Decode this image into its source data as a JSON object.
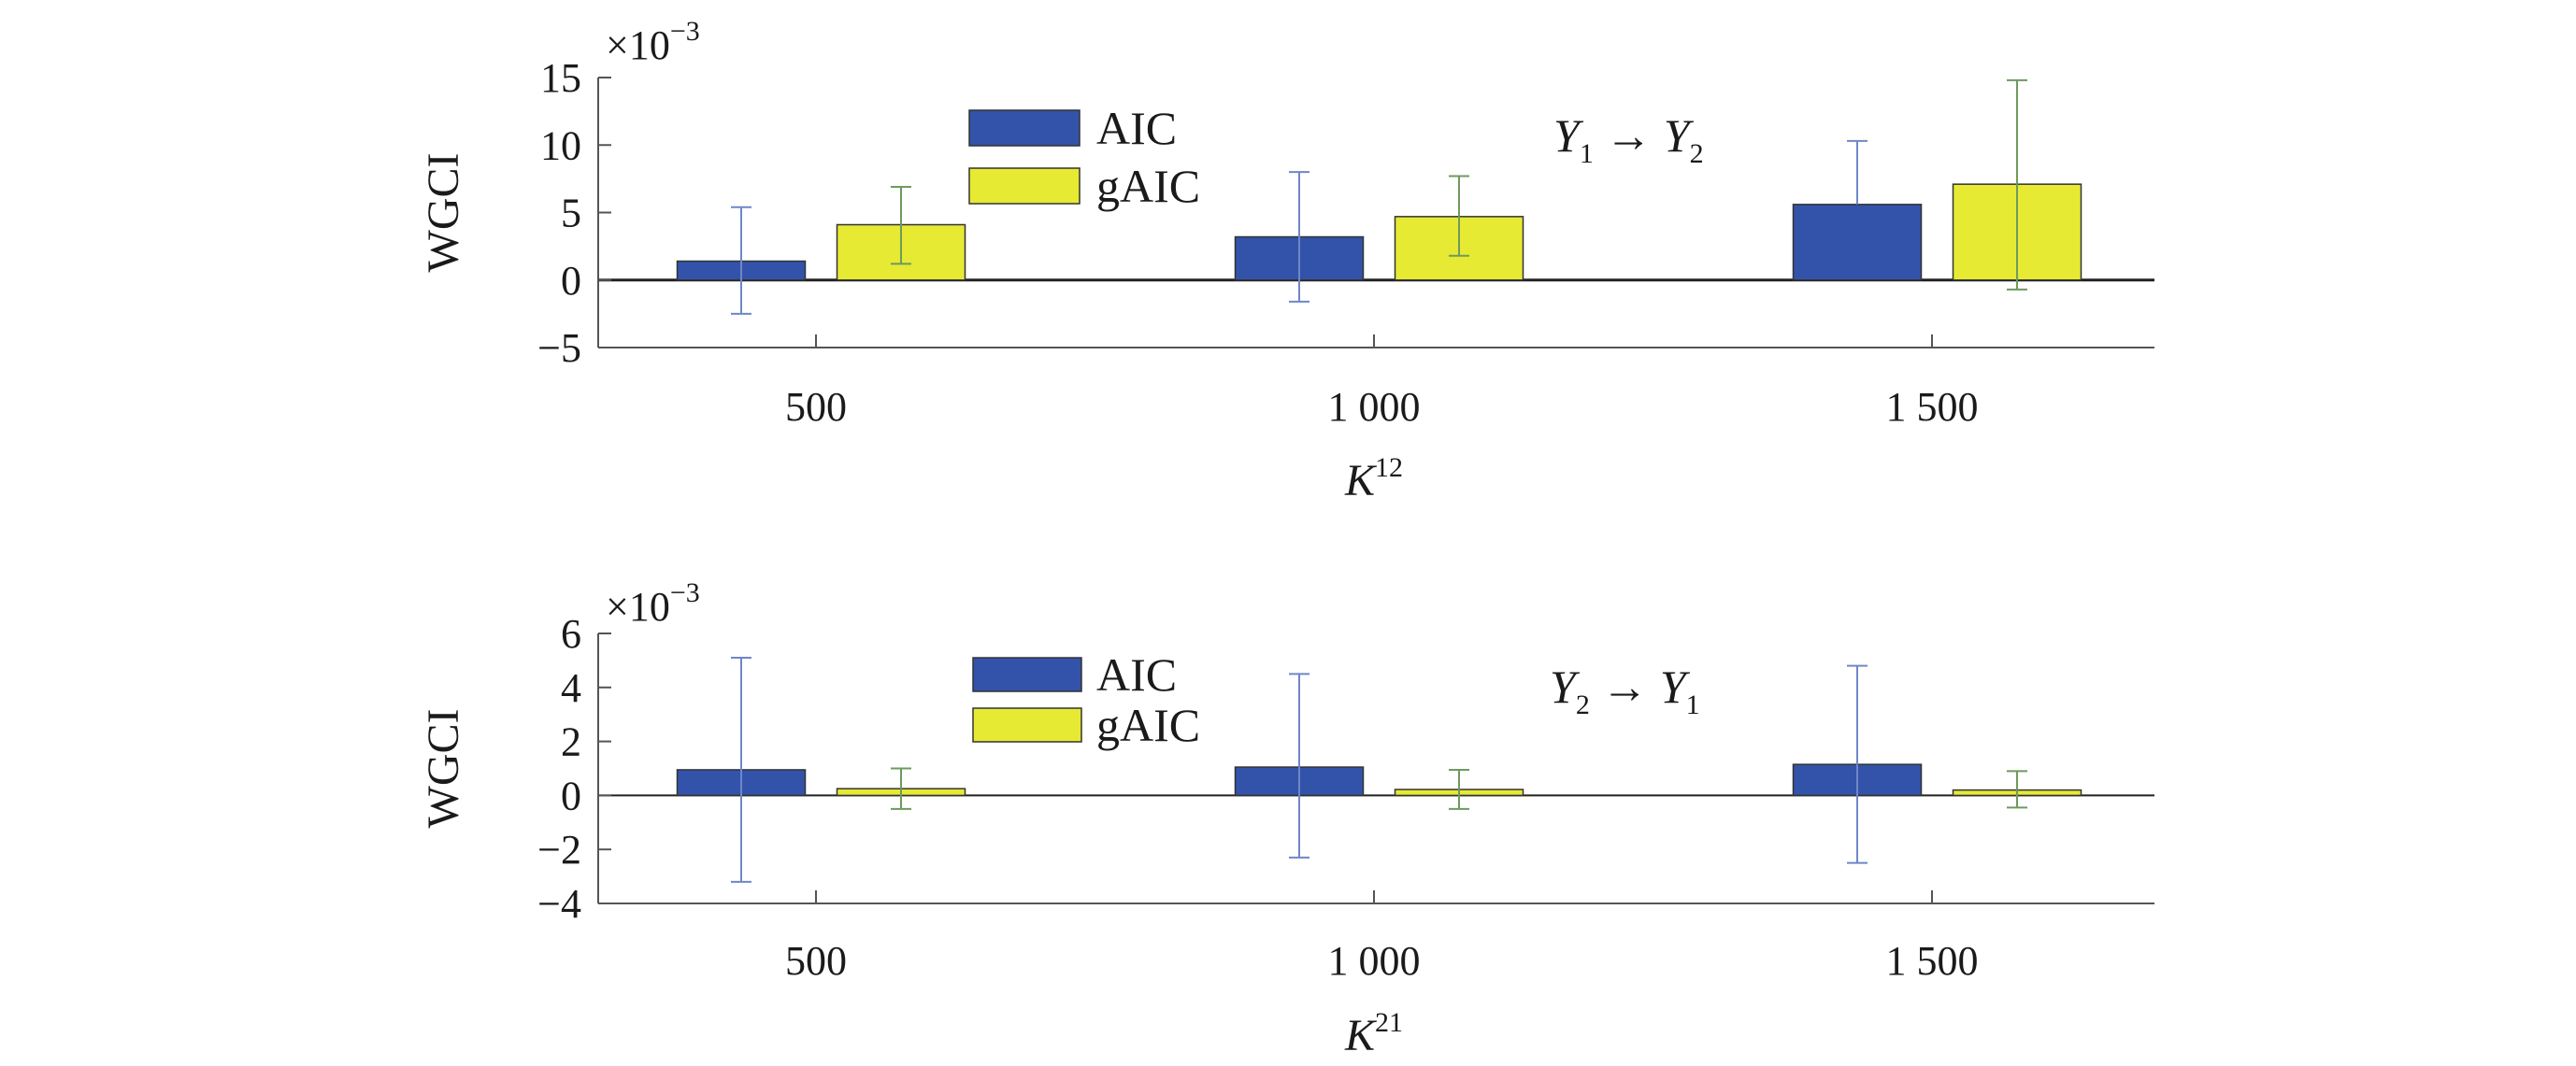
{
  "chart_data": [
    {
      "type": "bar",
      "panel": "top",
      "ylabel": "WGCI",
      "xlabel_main": "K",
      "xlabel_sup": "12",
      "multiplier_base": "×10",
      "multiplier_exp": "−3",
      "annotation": {
        "from": "Y",
        "from_sub": "1",
        "arrow": "→",
        "to": "Y",
        "to_sub": "2"
      },
      "ylim": [
        -5,
        15
      ],
      "yticks": [
        15,
        10,
        5,
        0,
        -5
      ],
      "ytick_labels": [
        "15",
        "10",
        "5",
        "0",
        "−5"
      ],
      "categories": [
        "500",
        "1 000",
        "1 500"
      ],
      "series": [
        {
          "name": "AIC",
          "values": [
            1.4,
            3.2,
            5.6
          ],
          "err_high": [
            5.4,
            8.0,
            10.3
          ],
          "err_low": [
            -2.5,
            -1.6,
            null
          ]
        },
        {
          "name": "gAIC",
          "values": [
            4.1,
            4.7,
            7.1
          ],
          "err_high": [
            6.9,
            7.7,
            14.8
          ],
          "err_low": [
            1.2,
            1.8,
            -0.7
          ]
        }
      ]
    },
    {
      "type": "bar",
      "panel": "bottom",
      "ylabel": "WGCI",
      "xlabel_main": "K",
      "xlabel_sup": "21",
      "multiplier_base": "×10",
      "multiplier_exp": "−3",
      "annotation": {
        "from": "Y",
        "from_sub": "2",
        "arrow": "→",
        "to": "Y",
        "to_sub": "1"
      },
      "ylim": [
        -4,
        6
      ],
      "yticks": [
        6,
        4,
        2,
        0,
        -2,
        -4
      ],
      "ytick_labels": [
        "6",
        "4",
        "2",
        "0",
        "−2",
        "−4"
      ],
      "categories": [
        "500",
        "1 000",
        "1 500"
      ],
      "series": [
        {
          "name": "AIC",
          "values": [
            0.95,
            1.05,
            1.15
          ],
          "err_high": [
            5.1,
            4.5,
            4.8
          ],
          "err_low": [
            -3.2,
            -2.3,
            -2.5
          ]
        },
        {
          "name": "gAIC",
          "values": [
            0.25,
            0.22,
            0.2
          ],
          "err_high": [
            1.0,
            0.95,
            0.9
          ],
          "err_low": [
            -0.5,
            -0.5,
            -0.45
          ]
        }
      ]
    }
  ],
  "colors": {
    "AIC": "#3353aa",
    "gAIC": "#e6ea33",
    "AIC_err": "#6f86c9",
    "gAIC_err": "#6e9a5e",
    "axis": "#555555"
  }
}
